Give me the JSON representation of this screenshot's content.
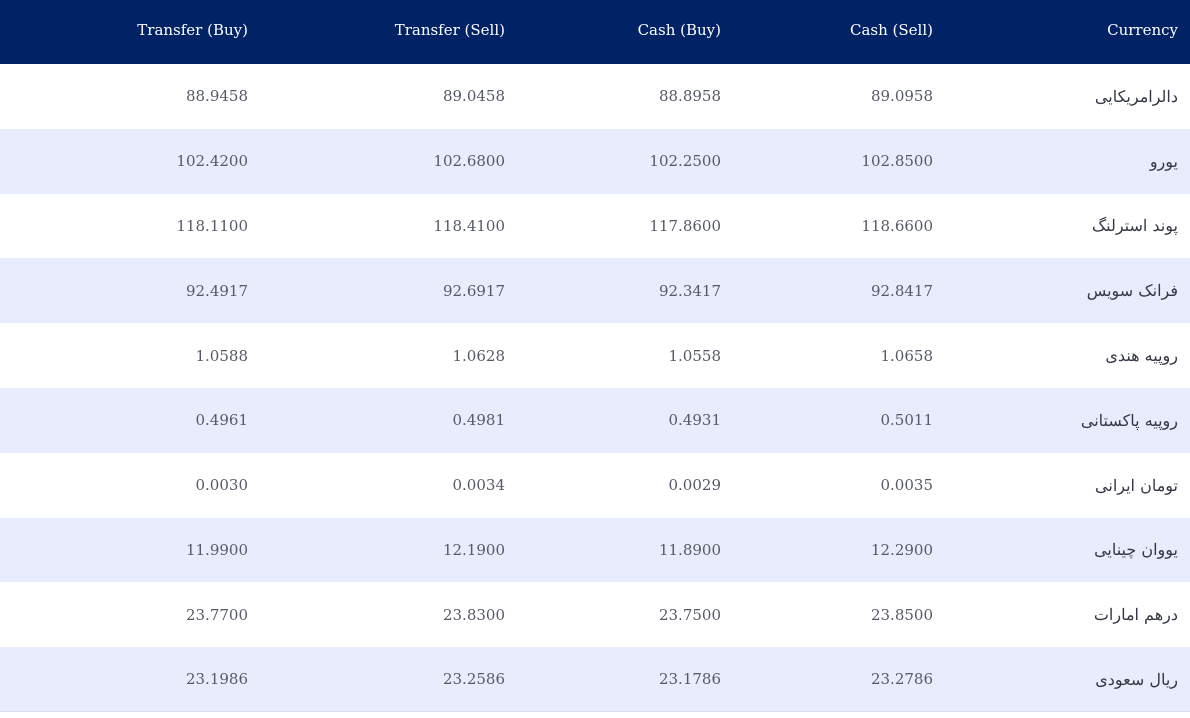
{
  "table": {
    "headers": {
      "transfer_buy": "Transfer (Buy)",
      "transfer_sell": "Transfer (Sell)",
      "cash_buy": "Cash (Buy)",
      "cash_sell": "Cash (Sell)",
      "currency": "Currency"
    },
    "rows": [
      {
        "currency": "دالرامریکایی",
        "cash_sell": "89.0958",
        "cash_buy": "88.8958",
        "transfer_sell": "89.0458",
        "transfer_buy": "88.9458"
      },
      {
        "currency": "یورو",
        "cash_sell": "102.8500",
        "cash_buy": "102.2500",
        "transfer_sell": "102.6800",
        "transfer_buy": "102.4200"
      },
      {
        "currency": "پوند استرلنگ",
        "cash_sell": "118.6600",
        "cash_buy": "117.8600",
        "transfer_sell": "118.4100",
        "transfer_buy": "118.1100"
      },
      {
        "currency": "فرانک سویس",
        "cash_sell": "92.8417",
        "cash_buy": "92.3417",
        "transfer_sell": "92.6917",
        "transfer_buy": "92.4917"
      },
      {
        "currency": "روپیه هندی",
        "cash_sell": "1.0658",
        "cash_buy": "1.0558",
        "transfer_sell": "1.0628",
        "transfer_buy": "1.0588"
      },
      {
        "currency": "روپیه پاکستانی",
        "cash_sell": "0.5011",
        "cash_buy": "0.4931",
        "transfer_sell": "0.4981",
        "transfer_buy": "0.4961"
      },
      {
        "currency": "تومان ایرانی",
        "cash_sell": "0.0035",
        "cash_buy": "0.0029",
        "transfer_sell": "0.0034",
        "transfer_buy": "0.0030"
      },
      {
        "currency": "یووان چینایی",
        "cash_sell": "12.2900",
        "cash_buy": "11.8900",
        "transfer_sell": "12.1900",
        "transfer_buy": "11.9900"
      },
      {
        "currency": "درهم امارات",
        "cash_sell": "23.8500",
        "cash_buy": "23.7500",
        "transfer_sell": "23.8300",
        "transfer_buy": "23.7700"
      },
      {
        "currency": "ریال سعودی",
        "cash_sell": "23.2786",
        "cash_buy": "23.1786",
        "transfer_sell": "23.2586",
        "transfer_buy": "23.1986"
      }
    ]
  },
  "colors": {
    "header_bg": "#012365",
    "row_alt_bg": "#e9ecfc"
  }
}
